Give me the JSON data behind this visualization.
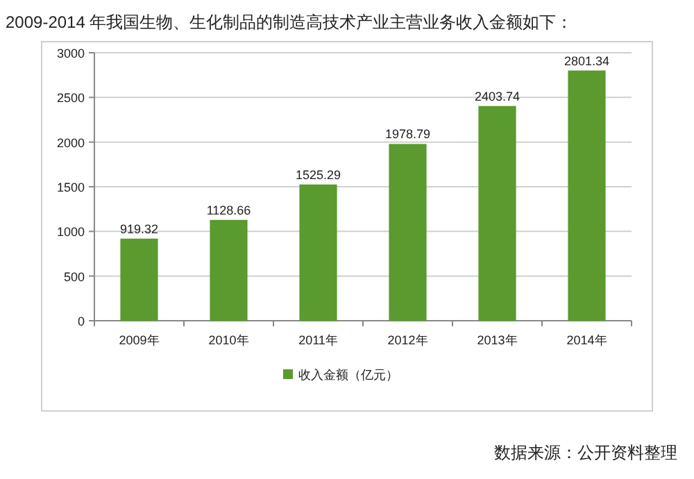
{
  "chart_data": {
    "type": "bar",
    "title": "2009-2014 年我国生物、生化制品的制造高技术产业主营业务收入金额如下：",
    "categories": [
      "2009年",
      "2010年",
      "2011年",
      "2012年",
      "2013年",
      "2014年"
    ],
    "series": [
      {
        "name": "收入金额（亿元）",
        "color": "#5a9a2e",
        "values": [
          919.32,
          1128.66,
          1525.29,
          1978.79,
          2403.74,
          2801.34
        ]
      }
    ],
    "ylim": [
      0,
      3000
    ],
    "yticks": [
      0,
      500,
      1000,
      1500,
      2000,
      2500,
      3000
    ],
    "grid": "y",
    "legend": "bottom",
    "data_labels": true,
    "annotations": [
      "数据来源：公开资料整理"
    ]
  }
}
